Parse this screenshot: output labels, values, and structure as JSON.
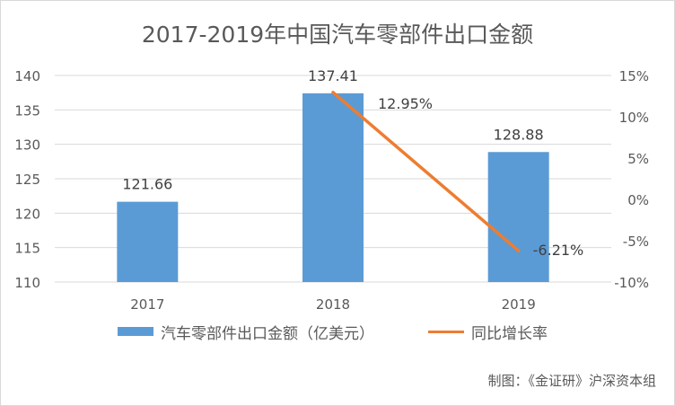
{
  "chart_data": {
    "type": "bar+line",
    "title": "2017-2019年中国汽车零部件出口金额",
    "categories": [
      "2017",
      "2018",
      "2019"
    ],
    "series": [
      {
        "name": "汽车零部件出口金额（亿美元）",
        "type": "bar",
        "axis": "left",
        "values": [
          121.66,
          137.41,
          128.88
        ],
        "labels": [
          "121.66",
          "137.41",
          "128.88"
        ],
        "color": "#5b9bd5"
      },
      {
        "name": "同比增长率",
        "type": "line",
        "axis": "right",
        "x": [
          "2018",
          "2019"
        ],
        "values": [
          12.95,
          -6.21
        ],
        "labels": [
          "12.95%",
          "-6.21%"
        ],
        "color": "#ed7d31"
      }
    ],
    "y_left": {
      "lim": [
        110,
        140
      ],
      "ticks": [
        "110",
        "115",
        "120",
        "125",
        "130",
        "135",
        "140"
      ]
    },
    "y_right": {
      "lim": [
        -10,
        15
      ],
      "ticks": [
        "-10%",
        "-5%",
        "0%",
        "5%",
        "10%",
        "15%"
      ]
    },
    "grid": true,
    "legend_position": "bottom"
  },
  "source": "制图：《金证研》沪深资本组"
}
